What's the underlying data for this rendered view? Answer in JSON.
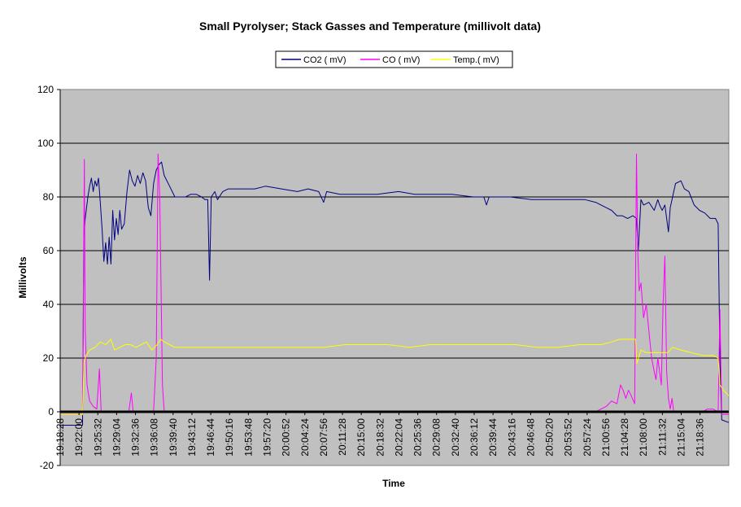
{
  "chart_data": {
    "type": "line",
    "title": "Small Pyrolyser; Stack Gasses and Temperature (millivolt data)",
    "xlabel": "Time",
    "ylabel": "Millivolts",
    "ylim": [
      -20,
      120
    ],
    "yticks": [
      "-20",
      "0",
      "20",
      "40",
      "60",
      "80",
      "100",
      "120"
    ],
    "grid": "horizontal major gridlines",
    "legend_position": "top-center",
    "plot_background": "#c0c0c0",
    "x_ticks": [
      "19:18:28",
      "19:22:00",
      "19:25:32",
      "19:29:04",
      "19:32:36",
      "19:36:08",
      "19:39:40",
      "19:43:12",
      "19:46:44",
      "19:50:16",
      "19:53:48",
      "19:57:20",
      "20:00:52",
      "20:04:24",
      "20:07:56",
      "20:11:28",
      "20:15:00",
      "20:18:32",
      "20:22:04",
      "20:25:36",
      "20:29:08",
      "20:32:40",
      "20:36:12",
      "20:39:44",
      "20:43:16",
      "20:46:48",
      "20:50:20",
      "20:53:52",
      "20:57:24",
      "21:00:56",
      "21:04:28",
      "21:08:00",
      "21:11:32",
      "21:15:04",
      "21:18:36"
    ],
    "x_range": [
      "19:18:28",
      "21:24:00"
    ],
    "series": [
      {
        "name": "CO2 ( mV)",
        "color": "#000080",
        "points": [
          [
            "19:18:28",
            -5
          ],
          [
            "19:21:30",
            -5
          ],
          [
            "19:22:40",
            -5
          ],
          [
            "19:22:55",
            65
          ],
          [
            "19:23:10",
            72
          ],
          [
            "19:23:40",
            80
          ],
          [
            "19:24:00",
            84
          ],
          [
            "19:24:20",
            87
          ],
          [
            "19:24:40",
            82
          ],
          [
            "19:25:00",
            86
          ],
          [
            "19:25:20",
            84
          ],
          [
            "19:25:40",
            87
          ],
          [
            "19:26:00",
            78
          ],
          [
            "19:26:20",
            68
          ],
          [
            "19:26:40",
            56
          ],
          [
            "19:27:00",
            63
          ],
          [
            "19:27:20",
            55
          ],
          [
            "19:27:40",
            65
          ],
          [
            "19:28:00",
            55
          ],
          [
            "19:28:20",
            75
          ],
          [
            "19:28:40",
            64
          ],
          [
            "19:29:00",
            72
          ],
          [
            "19:29:20",
            66
          ],
          [
            "19:29:40",
            75
          ],
          [
            "19:30:00",
            68
          ],
          [
            "19:30:30",
            70
          ],
          [
            "19:31:00",
            82
          ],
          [
            "19:31:30",
            90
          ],
          [
            "19:32:00",
            86
          ],
          [
            "19:32:30",
            84
          ],
          [
            "19:33:00",
            88
          ],
          [
            "19:33:30",
            85
          ],
          [
            "19:34:00",
            89
          ],
          [
            "19:34:30",
            86
          ],
          [
            "19:35:00",
            76
          ],
          [
            "19:35:30",
            73
          ],
          [
            "19:36:00",
            85
          ],
          [
            "19:36:30",
            90
          ],
          [
            "19:37:00",
            92
          ],
          [
            "19:37:30",
            93
          ],
          [
            "19:38:00",
            88
          ],
          [
            "19:39:00",
            84
          ],
          [
            "19:40:00",
            80
          ],
          [
            "19:42:00",
            80
          ],
          [
            "19:43:00",
            81
          ],
          [
            "19:44:00",
            81
          ],
          [
            "19:45:00",
            80
          ],
          [
            "19:45:40",
            79
          ],
          [
            "19:46:10",
            79
          ],
          [
            "19:46:30",
            49
          ],
          [
            "19:46:50",
            80
          ],
          [
            "19:47:30",
            82
          ],
          [
            "19:48:00",
            79
          ],
          [
            "19:49:00",
            82
          ],
          [
            "19:50:00",
            83
          ],
          [
            "19:53:00",
            83
          ],
          [
            "19:55:00",
            83
          ],
          [
            "19:57:00",
            84
          ],
          [
            "20:00:00",
            83
          ],
          [
            "20:03:00",
            82
          ],
          [
            "20:05:00",
            83
          ],
          [
            "20:07:00",
            82
          ],
          [
            "20:07:56",
            78
          ],
          [
            "20:08:30",
            82
          ],
          [
            "20:11:00",
            81
          ],
          [
            "20:15:00",
            81
          ],
          [
            "20:18:00",
            81
          ],
          [
            "20:22:00",
            82
          ],
          [
            "20:25:00",
            81
          ],
          [
            "20:29:00",
            81
          ],
          [
            "20:32:00",
            81
          ],
          [
            "20:36:00",
            80
          ],
          [
            "20:38:00",
            80
          ],
          [
            "20:38:30",
            77
          ],
          [
            "20:39:00",
            80
          ],
          [
            "20:43:00",
            80
          ],
          [
            "20:47:00",
            79
          ],
          [
            "20:50:00",
            79
          ],
          [
            "20:53:00",
            79
          ],
          [
            "20:57:00",
            79
          ],
          [
            "20:59:00",
            78
          ],
          [
            "21:01:00",
            76
          ],
          [
            "21:02:00",
            75
          ],
          [
            "21:03:00",
            73
          ],
          [
            "21:04:00",
            73
          ],
          [
            "21:05:00",
            72
          ],
          [
            "21:06:00",
            73
          ],
          [
            "21:06:40",
            72
          ],
          [
            "21:07:00",
            60
          ],
          [
            "21:07:30",
            79
          ],
          [
            "21:08:00",
            77
          ],
          [
            "21:09:00",
            78
          ],
          [
            "21:10:00",
            75
          ],
          [
            "21:10:40",
            79
          ],
          [
            "21:11:00",
            77
          ],
          [
            "21:11:30",
            75
          ],
          [
            "21:12:00",
            77
          ],
          [
            "21:12:40",
            67
          ],
          [
            "21:13:00",
            76
          ],
          [
            "21:14:00",
            85
          ],
          [
            "21:15:00",
            86
          ],
          [
            "21:15:40",
            83
          ],
          [
            "21:16:30",
            82
          ],
          [
            "21:17:30",
            77
          ],
          [
            "21:18:30",
            75
          ],
          [
            "21:19:30",
            74
          ],
          [
            "21:20:30",
            72
          ],
          [
            "21:21:30",
            72
          ],
          [
            "21:22:00",
            70
          ],
          [
            "21:22:20",
            20
          ],
          [
            "21:22:40",
            -3
          ],
          [
            "21:24:00",
            -4
          ]
        ]
      },
      {
        "name": "CO ( mV)",
        "color": "#ff00ff",
        "points": [
          [
            "19:18:28",
            -1
          ],
          [
            "19:22:40",
            -1
          ],
          [
            "19:22:50",
            50
          ],
          [
            "19:23:00",
            94
          ],
          [
            "19:23:10",
            30
          ],
          [
            "19:23:30",
            10
          ],
          [
            "19:24:00",
            4
          ],
          [
            "19:24:40",
            2
          ],
          [
            "19:25:20",
            1
          ],
          [
            "19:25:50",
            16
          ],
          [
            "19:26:10",
            0
          ],
          [
            "19:30:00",
            0
          ],
          [
            "19:31:20",
            0
          ],
          [
            "19:31:50",
            7
          ],
          [
            "19:32:10",
            0
          ],
          [
            "19:36:00",
            0
          ],
          [
            "19:36:30",
            20
          ],
          [
            "19:36:50",
            96
          ],
          [
            "19:37:10",
            80
          ],
          [
            "19:37:40",
            10
          ],
          [
            "19:38:00",
            0
          ],
          [
            "20:58:00",
            0
          ],
          [
            "20:59:00",
            0
          ],
          [
            "21:00:00",
            1
          ],
          [
            "21:01:00",
            2
          ],
          [
            "21:02:00",
            4
          ],
          [
            "21:03:00",
            3
          ],
          [
            "21:03:40",
            10
          ],
          [
            "21:04:10",
            8
          ],
          [
            "21:04:40",
            5
          ],
          [
            "21:05:10",
            8
          ],
          [
            "21:05:40",
            6
          ],
          [
            "21:06:20",
            3
          ],
          [
            "21:06:40",
            96
          ],
          [
            "21:06:55",
            60
          ],
          [
            "21:07:10",
            45
          ],
          [
            "21:07:30",
            48
          ],
          [
            "21:08:00",
            35
          ],
          [
            "21:08:30",
            40
          ],
          [
            "21:09:00",
            30
          ],
          [
            "21:09:30",
            20
          ],
          [
            "21:10:00",
            15
          ],
          [
            "21:10:20",
            12
          ],
          [
            "21:10:40",
            20
          ],
          [
            "21:11:00",
            15
          ],
          [
            "21:11:20",
            10
          ],
          [
            "21:11:40",
            40
          ],
          [
            "21:12:00",
            58
          ],
          [
            "21:12:20",
            15
          ],
          [
            "21:12:40",
            5
          ],
          [
            "21:13:00",
            1
          ],
          [
            "21:13:20",
            5
          ],
          [
            "21:13:40",
            0
          ],
          [
            "21:19:00",
            0
          ],
          [
            "21:20:00",
            1
          ],
          [
            "21:21:00",
            1
          ],
          [
            "21:22:00",
            0
          ],
          [
            "21:22:20",
            38
          ],
          [
            "21:22:40",
            -1
          ],
          [
            "21:24:00",
            -1
          ]
        ]
      },
      {
        "name": "Temp.( mV)",
        "color": "#ffff00",
        "points": [
          [
            "19:18:28",
            -1
          ],
          [
            "19:22:40",
            -1
          ],
          [
            "19:22:55",
            18
          ],
          [
            "19:23:20",
            21
          ],
          [
            "19:24:00",
            23
          ],
          [
            "19:25:00",
            24
          ],
          [
            "19:26:00",
            26
          ],
          [
            "19:27:00",
            25
          ],
          [
            "19:28:00",
            27
          ],
          [
            "19:28:40",
            23
          ],
          [
            "19:29:40",
            24
          ],
          [
            "19:30:40",
            25
          ],
          [
            "19:31:40",
            25
          ],
          [
            "19:32:40",
            24
          ],
          [
            "19:33:40",
            25
          ],
          [
            "19:34:40",
            26
          ],
          [
            "19:35:40",
            23
          ],
          [
            "19:36:40",
            25
          ],
          [
            "19:37:20",
            27
          ],
          [
            "19:38:00",
            26
          ],
          [
            "19:39:00",
            25
          ],
          [
            "19:40:00",
            24
          ],
          [
            "19:44:00",
            24
          ],
          [
            "19:48:00",
            24
          ],
          [
            "19:52:00",
            24
          ],
          [
            "19:56:00",
            24
          ],
          [
            "20:00:00",
            24
          ],
          [
            "20:04:00",
            24
          ],
          [
            "20:08:00",
            24
          ],
          [
            "20:12:00",
            25
          ],
          [
            "20:16:00",
            25
          ],
          [
            "20:20:00",
            25
          ],
          [
            "20:24:00",
            24
          ],
          [
            "20:28:00",
            25
          ],
          [
            "20:32:00",
            25
          ],
          [
            "20:36:00",
            25
          ],
          [
            "20:40:00",
            25
          ],
          [
            "20:44:00",
            25
          ],
          [
            "20:48:00",
            24
          ],
          [
            "20:52:00",
            24
          ],
          [
            "20:56:00",
            25
          ],
          [
            "21:00:00",
            25
          ],
          [
            "21:02:00",
            26
          ],
          [
            "21:03:30",
            27
          ],
          [
            "21:05:00",
            27
          ],
          [
            "21:06:30",
            27
          ],
          [
            "21:06:45",
            18
          ],
          [
            "21:07:30",
            23
          ],
          [
            "21:08:30",
            22
          ],
          [
            "21:10:00",
            22
          ],
          [
            "21:11:30",
            22
          ],
          [
            "21:12:30",
            22
          ],
          [
            "21:13:30",
            24
          ],
          [
            "21:15:00",
            23
          ],
          [
            "21:17:00",
            22
          ],
          [
            "21:19:00",
            21
          ],
          [
            "21:21:00",
            21
          ],
          [
            "21:22:00",
            20
          ],
          [
            "21:22:20",
            10
          ],
          [
            "21:23:00",
            8
          ],
          [
            "21:24:00",
            6
          ]
        ]
      },
      {
        "name": "",
        "color": "#000000",
        "points": [
          [
            "19:18:28",
            0
          ],
          [
            "21:24:00",
            0
          ]
        ]
      }
    ]
  }
}
